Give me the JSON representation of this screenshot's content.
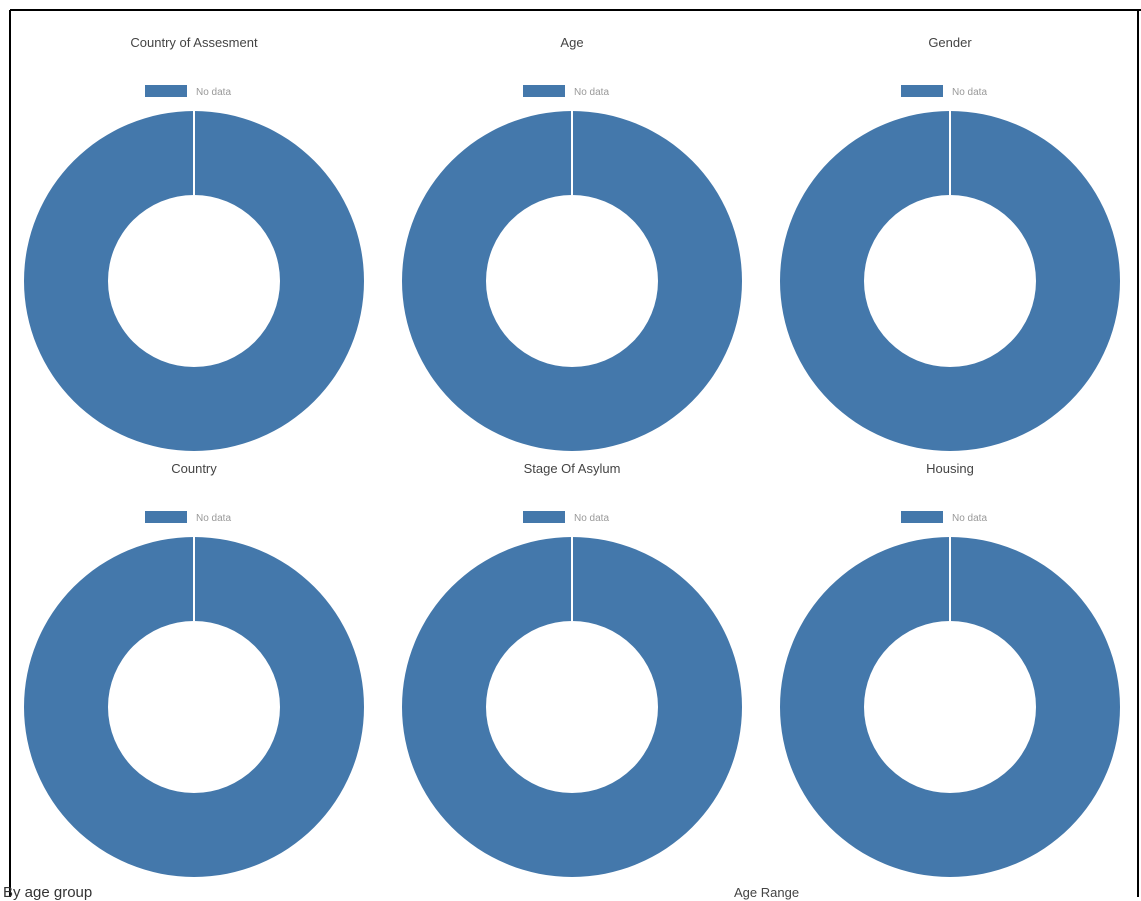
{
  "chart_data": [
    {
      "type": "pie",
      "title": "Country of Assesment",
      "legend": "top",
      "categories": [
        "No data"
      ],
      "values": [
        1
      ]
    },
    {
      "type": "pie",
      "title": "Age",
      "legend": "top",
      "categories": [
        "No data"
      ],
      "values": [
        1
      ]
    },
    {
      "type": "pie",
      "title": "Gender",
      "legend": "top",
      "categories": [
        "No data"
      ],
      "values": [
        1
      ]
    },
    {
      "type": "pie",
      "title": "Country",
      "legend": "top",
      "categories": [
        "No data"
      ],
      "values": [
        1
      ]
    },
    {
      "type": "pie",
      "title": "Stage Of Asylum",
      "legend": "top",
      "categories": [
        "No data"
      ],
      "values": [
        1
      ]
    },
    {
      "type": "pie",
      "title": "Housing",
      "legend": "top",
      "categories": [
        "No data"
      ],
      "values": [
        1
      ]
    }
  ],
  "colors": {
    "slice": "#4478ab",
    "border": "#000000",
    "title": "#444444",
    "legend_text": "#999999"
  },
  "footer": {
    "left_text": "By age group",
    "right_text": "Age Range"
  }
}
